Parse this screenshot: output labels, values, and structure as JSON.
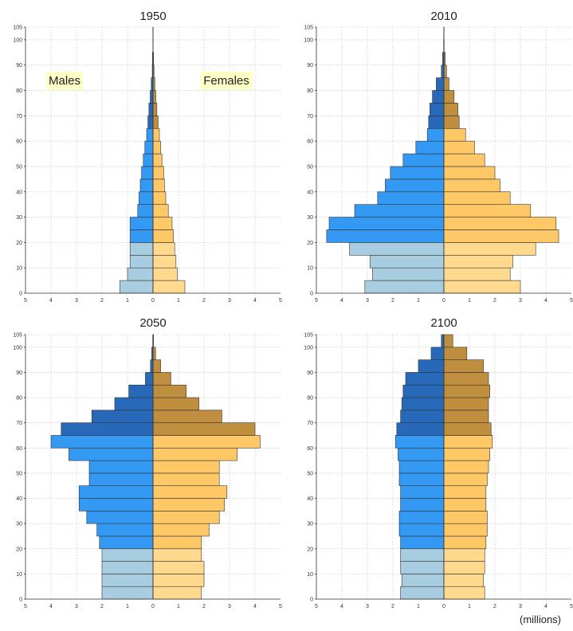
{
  "units_label": "(millions)",
  "chart_data": {
    "type": "bar",
    "orientation": "horizontal",
    "layout": "population-pyramids",
    "age_range": [
      0,
      105
    ],
    "age_ticks": [
      0,
      10,
      20,
      30,
      40,
      50,
      60,
      70,
      80,
      90,
      100,
      105
    ],
    "population_range": [
      0,
      5
    ],
    "population_ticks": [
      5,
      4,
      3,
      2,
      1,
      0,
      1,
      2,
      3,
      4,
      5
    ],
    "units": "(millions)",
    "legend_labels": {
      "males": "Males",
      "females": "Females"
    },
    "grid": true,
    "colors": {
      "male_young": "#a9cde0",
      "male_working": "#3399f3",
      "male_old": "#2868b8",
      "female_young": "#ffd98d",
      "female_working": "#ffc866",
      "female_old": "#bf8e3e",
      "label_background": "#ffffc8"
    },
    "age_groups": [
      "0-4",
      "5-9",
      "10-14",
      "15-19",
      "20-24",
      "25-29",
      "30-34",
      "35-39",
      "40-44",
      "45-49",
      "50-54",
      "55-59",
      "60-64",
      "65-69",
      "70-74",
      "75-79",
      "80-84",
      "85-89",
      "90-94",
      "95-99",
      "100+"
    ],
    "panels": [
      {
        "title": "1950",
        "males": [
          1.3,
          1.0,
          0.9,
          0.9,
          0.9,
          0.9,
          0.6,
          0.55,
          0.5,
          0.45,
          0.38,
          0.32,
          0.25,
          0.2,
          0.16,
          0.11,
          0.07,
          0.03,
          0.02,
          0.005,
          0.002
        ],
        "females": [
          1.25,
          0.95,
          0.9,
          0.85,
          0.8,
          0.75,
          0.6,
          0.5,
          0.45,
          0.42,
          0.35,
          0.3,
          0.25,
          0.2,
          0.15,
          0.11,
          0.07,
          0.04,
          0.02,
          0.005,
          0.002
        ]
      },
      {
        "title": "2010",
        "males": [
          3.1,
          2.8,
          2.9,
          3.7,
          4.6,
          4.5,
          3.5,
          2.6,
          2.3,
          2.1,
          1.6,
          1.1,
          0.65,
          0.6,
          0.55,
          0.45,
          0.3,
          0.1,
          0.05,
          0.01,
          0.002
        ],
        "females": [
          3.0,
          2.6,
          2.7,
          3.6,
          4.5,
          4.4,
          3.4,
          2.6,
          2.2,
          2.0,
          1.6,
          1.2,
          0.85,
          0.6,
          0.55,
          0.4,
          0.2,
          0.1,
          0.05,
          0.01,
          0.002
        ]
      },
      {
        "title": "2050",
        "males": [
          2.0,
          2.0,
          2.0,
          2.0,
          2.1,
          2.2,
          2.6,
          2.9,
          2.9,
          2.5,
          2.5,
          3.3,
          4.0,
          3.6,
          2.4,
          1.5,
          0.95,
          0.3,
          0.1,
          0.05,
          0.01
        ],
        "females": [
          1.9,
          2.0,
          2.0,
          1.9,
          1.9,
          2.2,
          2.6,
          2.8,
          2.9,
          2.6,
          2.6,
          3.3,
          4.2,
          4.0,
          2.7,
          1.8,
          1.3,
          0.7,
          0.3,
          0.1,
          0.02
        ],
        "old_groups_start": 13
      },
      {
        "title": "2100",
        "males": [
          1.7,
          1.65,
          1.7,
          1.7,
          1.7,
          1.75,
          1.75,
          1.7,
          1.7,
          1.75,
          1.75,
          1.8,
          1.9,
          1.85,
          1.7,
          1.65,
          1.6,
          1.5,
          1.0,
          0.5,
          0.1
        ],
        "females": [
          1.6,
          1.55,
          1.6,
          1.6,
          1.65,
          1.7,
          1.7,
          1.65,
          1.65,
          1.7,
          1.75,
          1.8,
          1.9,
          1.85,
          1.75,
          1.75,
          1.8,
          1.75,
          1.55,
          0.9,
          0.35
        ]
      }
    ]
  }
}
